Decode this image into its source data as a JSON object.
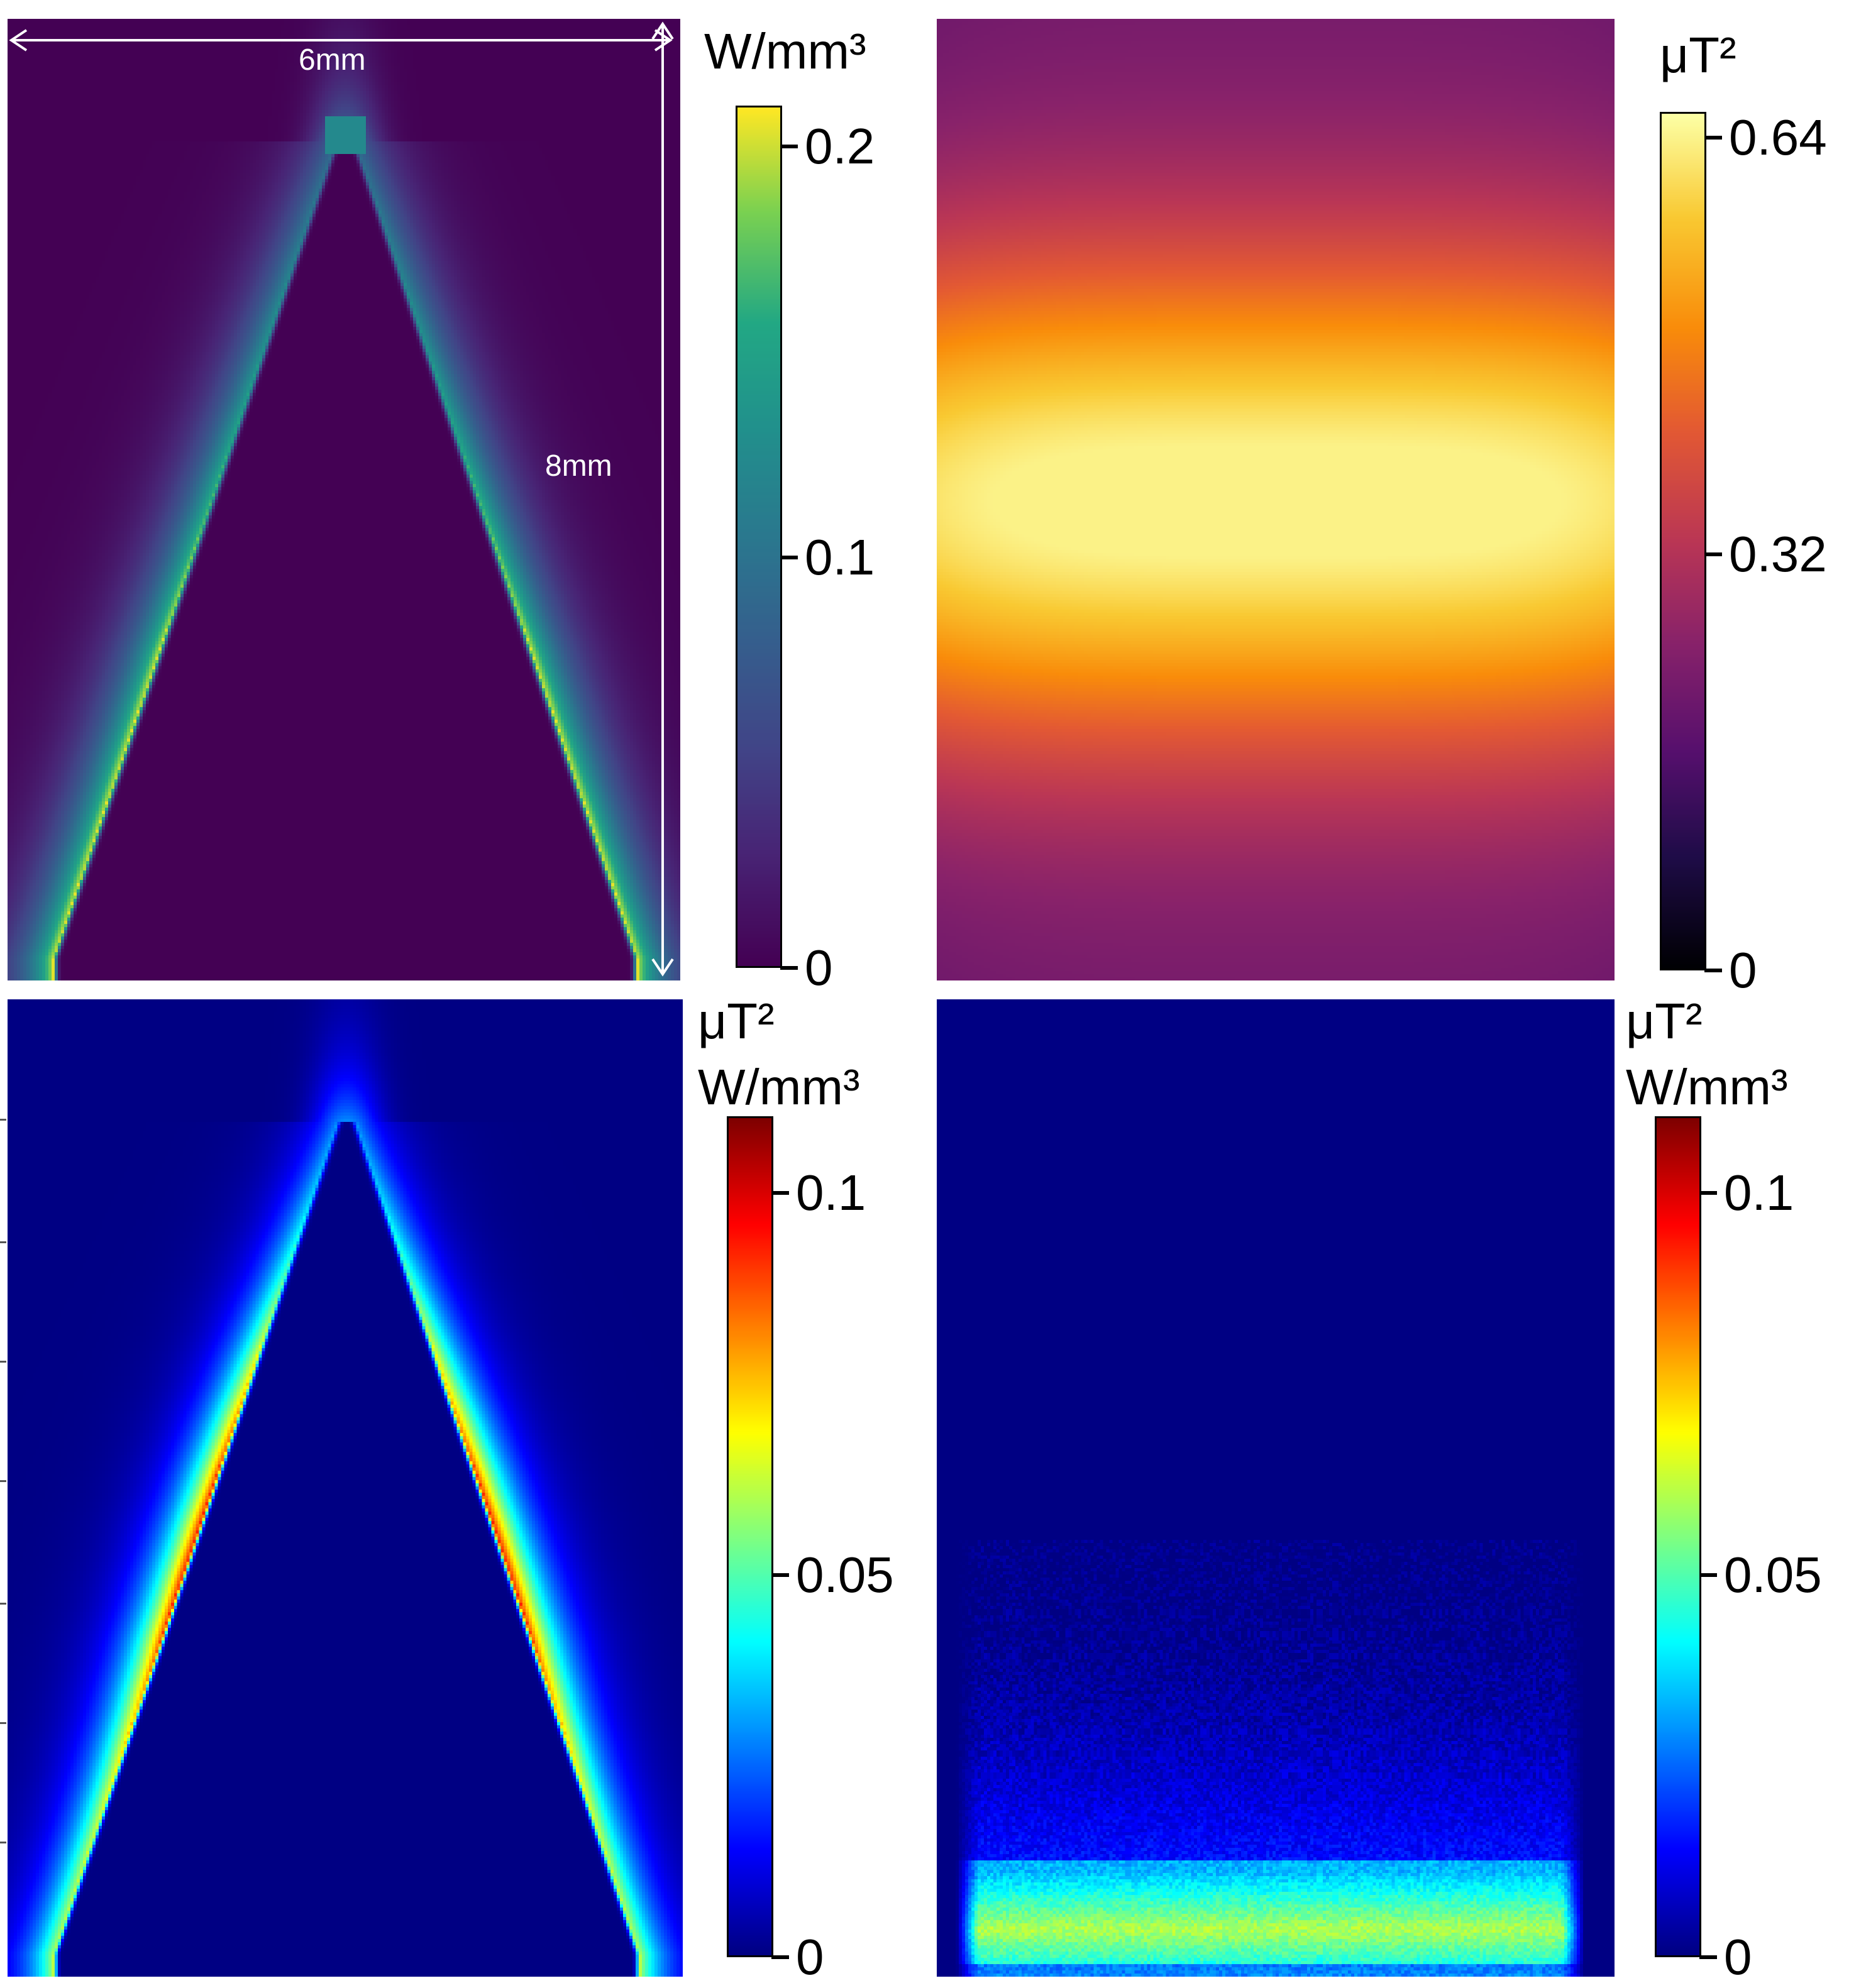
{
  "panels": [
    {
      "id": "top-left",
      "colormap": "viridis",
      "colorbar": {
        "units": [
          "W/mm³"
        ],
        "ticks": [
          {
            "value": 0.2,
            "label": "0.2"
          },
          {
            "value": 0.1,
            "label": "0.1"
          },
          {
            "value": 0,
            "label": "0"
          }
        ],
        "range": [
          0,
          0.21
        ]
      },
      "annotations": {
        "width_label": "6mm",
        "height_label": "8mm"
      }
    },
    {
      "id": "top-right",
      "colormap": "inferno",
      "colorbar": {
        "units": [
          "μT²"
        ],
        "ticks": [
          {
            "value": 0.64,
            "label": "0.64"
          },
          {
            "value": 0.32,
            "label": "0.32"
          },
          {
            "value": 0,
            "label": "0"
          }
        ],
        "range": [
          0,
          0.66
        ]
      }
    },
    {
      "id": "bottom-left",
      "colormap": "jet",
      "colorbar": {
        "units": [
          "μT²",
          "W/mm³"
        ],
        "ticks": [
          {
            "value": 0.1,
            "label": "0.1"
          },
          {
            "value": 0.05,
            "label": "0.05"
          },
          {
            "value": 0,
            "label": "0"
          }
        ],
        "range": [
          0,
          0.11
        ]
      }
    },
    {
      "id": "bottom-right",
      "colormap": "jet",
      "colorbar": {
        "units": [
          "μT²",
          "W/mm³"
        ],
        "ticks": [
          {
            "value": 0.1,
            "label": "0.1"
          },
          {
            "value": 0.05,
            "label": "0.05"
          },
          {
            "value": 0,
            "label": "0"
          }
        ],
        "range": [
          0,
          0.11
        ]
      }
    }
  ],
  "chart_data": [
    {
      "type": "heatmap",
      "title": "",
      "colormap": "viridis",
      "value_range": [
        0,
        0.21
      ],
      "units": "W/mm³",
      "description_values": {
        "peak_on_chevron_arms": 0.2,
        "background": 0
      }
    },
    {
      "type": "heatmap",
      "title": "",
      "colormap": "inferno",
      "value_range": [
        0,
        0.66
      ],
      "units": "μT²",
      "description_values": {
        "peak_central_band": 0.64,
        "edges": 0.2
      }
    },
    {
      "type": "heatmap",
      "title": "",
      "colormap": "jet",
      "value_range": [
        0,
        0.11
      ],
      "units": "μT² W/mm³",
      "description_values": {
        "peak_on_chevron_arms": 0.1,
        "background": 0
      }
    },
    {
      "type": "heatmap",
      "title": "",
      "colormap": "jet",
      "value_range": [
        0,
        0.11
      ],
      "units": "μT² W/mm³",
      "description_values": {
        "peak_bottom_band": 0.06,
        "background": 0
      }
    }
  ]
}
